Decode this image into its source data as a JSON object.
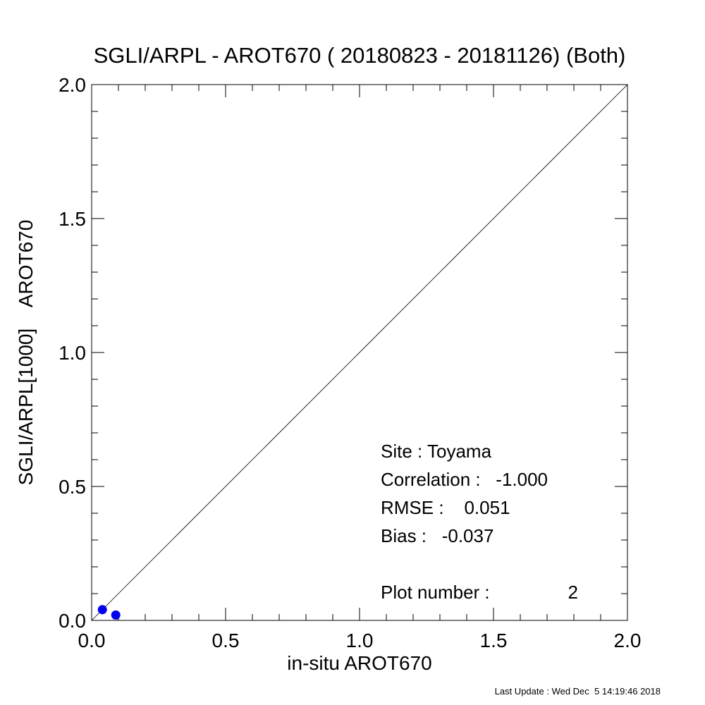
{
  "chart_data": {
    "type": "scatter",
    "title": "SGLI/ARPL - AROT670 ( 20180823 - 20181126) (Both)",
    "xlabel": "in-situ AROT670",
    "ylabel": "SGLI/ARPL[1000]    AROT670",
    "xlim": [
      0.0,
      2.0
    ],
    "ylim": [
      0.0,
      2.0
    ],
    "x_ticks": [
      "0.0",
      "0.5",
      "1.0",
      "1.5",
      "2.0"
    ],
    "y_ticks": [
      "0.0",
      "0.5",
      "1.0",
      "1.5",
      "2.0"
    ],
    "tick_values": [
      0.0,
      0.5,
      1.0,
      1.5,
      2.0
    ],
    "grid": false,
    "reference_line": "1:1",
    "marker_color": "#0000ee",
    "points": [
      {
        "x": 0.04,
        "y": 0.04
      },
      {
        "x": 0.09,
        "y": 0.02
      }
    ],
    "annotations": {
      "site": "Site : Toyama",
      "correlation": "Correlation :   -1.000",
      "rmse": "RMSE :    0.051",
      "bias": "Bias :   -0.037",
      "plot_number_label": "Plot number :",
      "plot_number_value": "2"
    }
  },
  "footer": {
    "last_update": "Last Update : Wed Dec  5 14:19:46 2018"
  }
}
